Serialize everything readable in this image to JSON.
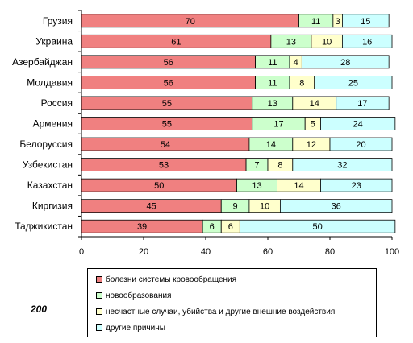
{
  "page_number": "200",
  "colors": {
    "circulatory": "#f08080",
    "neoplasms": "#ccffcc",
    "external": "#ffffcc",
    "other": "#ccffff"
  },
  "chart_data": {
    "type": "bar",
    "orientation": "horizontal",
    "stacked": true,
    "categories": [
      "Грузия",
      "Украина",
      "Азербайджан",
      "Молдавия",
      "Россия",
      "Армения",
      "Белоруссия",
      "Узбекистан",
      "Казахстан",
      "Киргизия",
      "Таджикистан"
    ],
    "series": [
      {
        "name": "болезни системы кровообращения",
        "color": "#f08080",
        "values": [
          70,
          61,
          56,
          56,
          55,
          55,
          54,
          53,
          50,
          45,
          39
        ]
      },
      {
        "name": "новообразования",
        "color": "#ccffcc",
        "values": [
          11,
          13,
          11,
          11,
          13,
          17,
          14,
          7,
          13,
          9,
          6
        ]
      },
      {
        "name": "несчастные случаи, убийства и другие внешние воздействия",
        "color": "#ffffcc",
        "values": [
          3,
          10,
          4,
          8,
          14,
          5,
          12,
          8,
          14,
          10,
          6
        ]
      },
      {
        "name": "другие причины",
        "color": "#ccffff",
        "values": [
          15,
          16,
          28,
          25,
          17,
          24,
          20,
          32,
          23,
          36,
          50
        ]
      }
    ],
    "xlim": [
      0,
      100
    ],
    "xticks": [
      0,
      20,
      40,
      60,
      80,
      100
    ],
    "legend_position": "bottom",
    "grid": false
  }
}
